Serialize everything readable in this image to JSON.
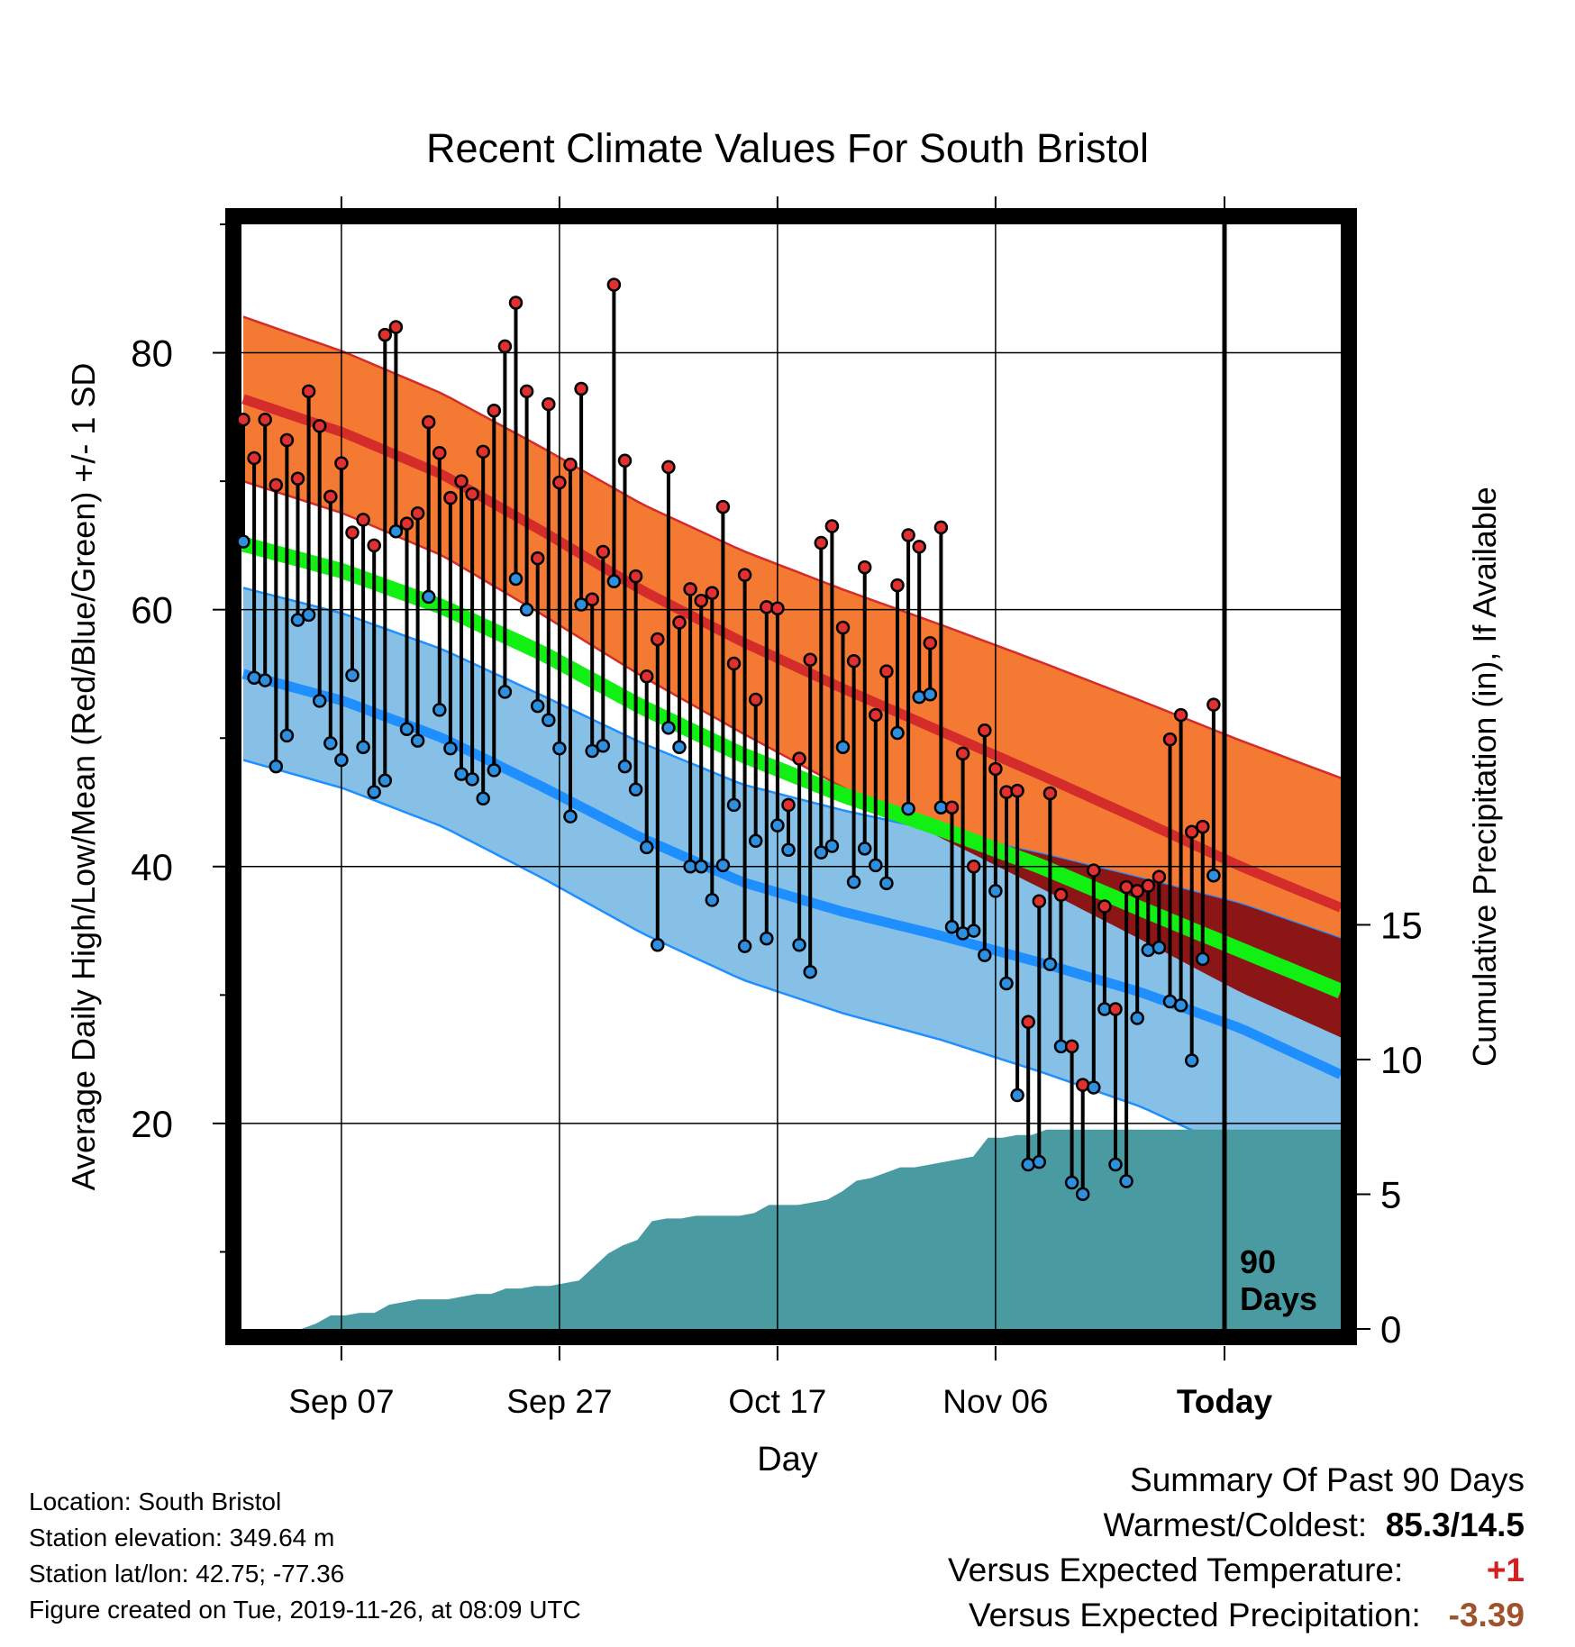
{
  "chart_data": {
    "type": "line",
    "title": "Recent Climate Values For South Bristol",
    "xlabel": "Day",
    "ylabel": "Average Daily High/Low/Mean (Red/Blue/Green) +/- 1 SD",
    "y2label": "Cumulative Precipitation (in), If Available",
    "ylim": [
      4,
      90
    ],
    "y2lim": [
      0,
      41
    ],
    "x_tick_labels": [
      "Sep 07",
      "Sep 27",
      "Oct 17",
      "Nov 06",
      "Today"
    ],
    "y_tick_labels": [
      "20",
      "40",
      "60",
      "80"
    ],
    "y2_tick_labels": [
      "0",
      "5",
      "10",
      "15"
    ],
    "today_label_line1": "90",
    "today_label_line2": "Days",
    "daily_high": [
      74.8,
      71.8,
      74.8,
      69.7,
      73.2,
      70.2,
      77.0,
      74.3,
      68.8,
      71.4,
      66.0,
      67.0,
      65.0,
      81.4,
      82.0,
      66.7,
      67.5,
      74.6,
      72.2,
      68.7,
      70.0,
      69.0,
      72.3,
      75.5,
      80.5,
      83.9,
      77.0,
      64.0,
      76.0,
      69.9,
      71.3,
      77.2,
      60.8,
      64.5,
      85.3,
      71.6,
      62.6,
      54.8,
      57.7,
      71.1,
      59.0,
      61.6,
      60.7,
      61.3,
      68.0,
      55.8,
      62.7,
      53.0,
      60.2,
      60.1,
      44.8,
      48.4,
      56.1,
      65.2,
      66.5,
      58.6,
      56.0,
      63.3,
      51.8,
      55.2,
      61.9,
      65.8,
      64.9,
      57.4,
      66.4,
      44.6,
      48.8,
      40.0,
      50.6,
      47.6,
      45.8,
      45.9,
      27.9,
      37.3,
      45.7,
      37.8,
      26.0,
      23.0,
      39.7,
      36.9,
      28.9,
      38.4,
      38.1,
      38.5,
      39.2,
      49.9,
      51.8,
      42.7,
      43.1,
      52.6
    ],
    "daily_low": [
      65.3,
      54.7,
      54.5,
      47.8,
      50.2,
      59.2,
      59.6,
      52.9,
      49.6,
      48.3,
      54.9,
      49.3,
      45.8,
      46.7,
      66.1,
      50.7,
      49.8,
      61.0,
      52.2,
      49.2,
      47.2,
      46.8,
      45.3,
      47.5,
      53.6,
      62.4,
      60.0,
      52.5,
      51.4,
      49.2,
      43.9,
      60.4,
      49.0,
      49.4,
      62.2,
      47.8,
      46.0,
      41.5,
      33.9,
      50.8,
      49.3,
      40.0,
      40.0,
      37.4,
      40.1,
      44.8,
      33.8,
      42.0,
      34.4,
      43.2,
      41.3,
      33.9,
      31.8,
      41.1,
      41.6,
      49.3,
      38.8,
      41.4,
      40.1,
      38.7,
      50.4,
      44.5,
      53.2,
      53.4,
      44.6,
      35.3,
      34.8,
      35.0,
      33.1,
      38.1,
      30.9,
      22.2,
      16.8,
      17.0,
      32.4,
      26.0,
      15.4,
      14.5,
      22.8,
      28.9,
      16.8,
      15.5,
      28.2,
      33.5,
      33.7,
      29.5,
      29.2,
      24.9,
      32.8,
      39.3
    ],
    "normal_high": [
      76.4,
      73.8,
      70.5,
      66.1,
      61.5,
      57.5,
      53.9,
      50.5,
      47.1,
      43.6,
      40.0,
      36.8
    ],
    "normal_high_sd": [
      6.4,
      6.3,
      6.3,
      6.5,
      6.7,
      7.1,
      7.7,
      8.3,
      8.8,
      9.3,
      9.8,
      10.1
    ],
    "normal_low": [
      55.0,
      52.9,
      50.0,
      46.2,
      42.2,
      38.8,
      36.5,
      34.6,
      32.5,
      30.2,
      27.4,
      23.8
    ],
    "normal_low_sd": [
      6.7,
      6.8,
      6.9,
      7.1,
      7.4,
      7.6,
      7.9,
      8.1,
      8.5,
      8.9,
      9.7,
      10.6
    ],
    "normal_mean": [
      65.1,
      63.0,
      60.2,
      56.6,
      52.4,
      48.7,
      45.6,
      42.9,
      40.0,
      36.7,
      33.5,
      30.3
    ],
    "cumulative_precip": [
      0.0,
      0.0,
      0.2,
      0.5,
      0.5,
      0.6,
      0.6,
      0.9,
      1.0,
      1.1,
      1.1,
      1.1,
      1.2,
      1.3,
      1.3,
      1.5,
      1.5,
      1.6,
      1.6,
      1.7,
      1.8,
      2.3,
      2.8,
      3.1,
      3.3,
      4.0,
      4.1,
      4.1,
      4.2,
      4.2,
      4.2,
      4.2,
      4.3,
      4.6,
      4.6,
      4.6,
      4.7,
      4.8,
      5.1,
      5.5,
      5.6,
      5.8,
      6.0,
      6.0,
      6.1,
      6.2,
      6.3,
      6.4,
      7.1,
      7.1,
      7.2,
      7.2,
      7.4,
      7.4
    ],
    "precip_up_to_today": 7.4
  },
  "footer": {
    "location": "Location: South Bristol",
    "elevation": "Station elevation: 349.64 m",
    "latlon": "Station lat/lon: 42.75; -77.36",
    "created": "Figure created on Tue, 2019-11-26, at 08:09 UTC"
  },
  "summary": {
    "title": "Summary Of Past 90 Days",
    "warm_cold_label": "Warmest/Coldest:",
    "warm_cold_value": "85.3/14.5",
    "temp_label": "Versus Expected Temperature:",
    "temp_value": "+1",
    "precip_label": "Versus Expected Precipitation:",
    "precip_value": "-3.39"
  },
  "colors": {
    "high_band": "#f47a33",
    "high_line": "#d42b2b",
    "low_band": "#86c0e6",
    "low_line": "#1f8fff",
    "mean_line": "#12ef12",
    "overlap": "#8c1515",
    "precip": "#4a9aa2",
    "high_dot": "#e03030",
    "low_dot": "#2f8fdf",
    "temp_value": "#d42020",
    "precip_value": "#a0522d"
  }
}
